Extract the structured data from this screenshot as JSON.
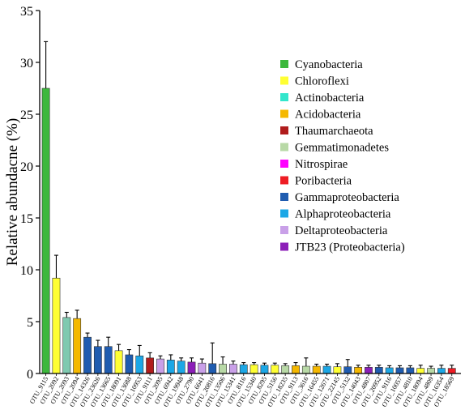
{
  "chart_data": {
    "type": "bar",
    "title": "",
    "xlabel": "",
    "ylabel": "Relative abundacne (%)",
    "ylim": [
      0,
      35
    ],
    "yticks": [
      0,
      5,
      10,
      15,
      20,
      25,
      30,
      35
    ],
    "grid": false,
    "legend_position": "top-right",
    "legend": [
      {
        "name": "Cyanobacteria",
        "color": "#3cb83c"
      },
      {
        "name": "Chloroflexi",
        "color": "#ffff33"
      },
      {
        "name": "Actinobacteria",
        "color": "#33e6cc"
      },
      {
        "name": "Acidobacteria",
        "color": "#f5b800"
      },
      {
        "name": "Thaumarchaeota",
        "color": "#b01c1c"
      },
      {
        "name": "Gemmatimonadetes",
        "color": "#b8d9a6"
      },
      {
        "name": "Nitrospirae",
        "color": "#ff00ff"
      },
      {
        "name": "Poribacteria",
        "color": "#ee1c24"
      },
      {
        "name": "Gammaproteobacteria",
        "color": "#1f5cb0"
      },
      {
        "name": "Alphaproteobacteria",
        "color": "#1ca7e6"
      },
      {
        "name": "Deltaproteobacteria",
        "color": "#c9a0e8"
      },
      {
        "name": "JTB23 (Proteobacteria)",
        "color": "#8c1fb8"
      }
    ],
    "bars": [
      {
        "label": "OTU_9115",
        "value": 27.5,
        "error": 4.5,
        "color": "#3cb83c"
      },
      {
        "label": "OTU_2092",
        "value": 9.2,
        "error": 2.2,
        "color": "#ffff33"
      },
      {
        "label": "OTU_2093",
        "value": 5.4,
        "error": 0.5,
        "color": "#7fc9b0"
      },
      {
        "label": "OTU_2094",
        "value": 5.3,
        "error": 0.8,
        "color": "#f5b800"
      },
      {
        "label": "OTU_14326",
        "value": 3.5,
        "error": 0.4,
        "color": "#1f5cb0"
      },
      {
        "label": "OTU_23626",
        "value": 2.6,
        "error": 0.6,
        "color": "#1f5cb0"
      },
      {
        "label": "OTU_13665",
        "value": 2.6,
        "error": 0.9,
        "color": "#1f5cb0"
      },
      {
        "label": "OTU_18091",
        "value": 2.2,
        "error": 0.6,
        "color": "#ffff33"
      },
      {
        "label": "OTU_13688",
        "value": 1.8,
        "error": 0.5,
        "color": "#1f5cb0"
      },
      {
        "label": "OTU_10953",
        "value": 1.7,
        "error": 1.0,
        "color": "#1ca7e6"
      },
      {
        "label": "OTU_9111",
        "value": 1.5,
        "error": 0.5,
        "color": "#b01c1c"
      },
      {
        "label": "OTU_2095",
        "value": 1.4,
        "error": 0.3,
        "color": "#c9a0e8"
      },
      {
        "label": "OTU_6942",
        "value": 1.3,
        "error": 0.5,
        "color": "#1ca7e6"
      },
      {
        "label": "OTU_19948",
        "value": 1.2,
        "error": 0.3,
        "color": "#1ca7e6"
      },
      {
        "label": "OTU_2790",
        "value": 1.1,
        "error": 0.4,
        "color": "#8c1fb8"
      },
      {
        "label": "OTU_6641",
        "value": 1.0,
        "error": 0.4,
        "color": "#c9a0e8"
      },
      {
        "label": "OTU_20816",
        "value": 0.95,
        "error": 2.0,
        "color": "#1f5cb0"
      },
      {
        "label": "OTU_13506",
        "value": 0.9,
        "error": 0.7,
        "color": "#b8d9a6"
      },
      {
        "label": "OTU_15341",
        "value": 0.9,
        "error": 0.3,
        "color": "#c9a0e8"
      },
      {
        "label": "OTU_8116",
        "value": 0.85,
        "error": 0.2,
        "color": "#1ca7e6"
      },
      {
        "label": "OTU_15340",
        "value": 0.85,
        "error": 0.2,
        "color": "#ffff33"
      },
      {
        "label": "OTU_8295",
        "value": 0.8,
        "error": 0.2,
        "color": "#1ca7e6"
      },
      {
        "label": "OTU_5156",
        "value": 0.8,
        "error": 0.2,
        "color": "#ffff33"
      },
      {
        "label": "OTU_18235",
        "value": 0.75,
        "error": 0.2,
        "color": "#b8d9a6"
      },
      {
        "label": "OTU_9113",
        "value": 0.75,
        "error": 0.3,
        "color": "#f5b800"
      },
      {
        "label": "OTU_3616",
        "value": 0.7,
        "error": 0.8,
        "color": "#b8d9a6"
      },
      {
        "label": "OTU_16455",
        "value": 0.7,
        "error": 0.2,
        "color": "#f5b800"
      },
      {
        "label": "OTU_12671",
        "value": 0.7,
        "error": 0.2,
        "color": "#1ca7e6"
      },
      {
        "label": "OTU_22145",
        "value": 0.65,
        "error": 0.3,
        "color": "#ffff33"
      },
      {
        "label": "OTU_5132",
        "value": 0.65,
        "error": 0.7,
        "color": "#1f5cb0"
      },
      {
        "label": "OTU_14043",
        "value": 0.6,
        "error": 0.2,
        "color": "#f5b800"
      },
      {
        "label": "OTU_4807",
        "value": 0.6,
        "error": 0.2,
        "color": "#8c1fb8"
      },
      {
        "label": "OTU_20952",
        "value": 0.6,
        "error": 0.2,
        "color": "#1f5cb0"
      },
      {
        "label": "OTU_9116",
        "value": 0.55,
        "error": 0.2,
        "color": "#1ca7e6"
      },
      {
        "label": "OTU_10057",
        "value": 0.55,
        "error": 0.2,
        "color": "#1f5cb0"
      },
      {
        "label": "OTU_4810",
        "value": 0.55,
        "error": 0.2,
        "color": "#1f5cb0"
      },
      {
        "label": "OTU_18094",
        "value": 0.5,
        "error": 0.3,
        "color": "#ffff33"
      },
      {
        "label": "OTU_4809",
        "value": 0.5,
        "error": 0.2,
        "color": "#b8d9a6"
      },
      {
        "label": "OTU_16354",
        "value": 0.5,
        "error": 0.3,
        "color": "#1ca7e6"
      },
      {
        "label": "OTU_18569",
        "value": 0.5,
        "error": 0.3,
        "color": "#ee1c24"
      }
    ]
  }
}
